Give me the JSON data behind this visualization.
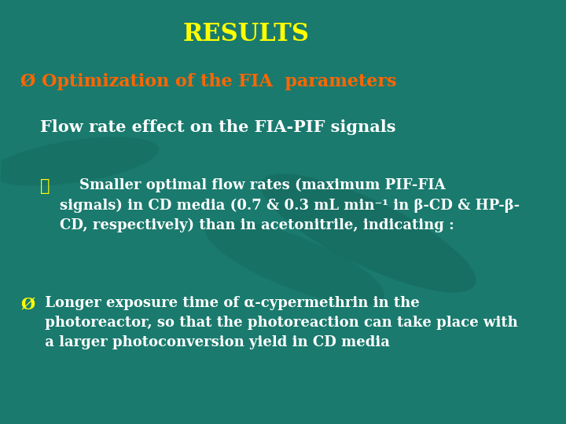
{
  "background_color": "#1a7a6e",
  "title": "RESULTS",
  "title_color": "#ffff00",
  "title_fontsize": 22,
  "subtitle": "Ø Optimization of the FIA  parameters",
  "subtitle_color": "#ff6600",
  "subtitle_fontsize": 16,
  "section_title": "Flow rate effect on the FIA-PIF signals",
  "section_title_color": "#ffffff",
  "section_title_fontsize": 15,
  "bullet1_marker": "✔",
  "bullet1_marker_color": "#ffff00",
  "bullet1_text": "    Smaller optimal flow rates (maximum PIF-FIA\nsignals) in CD media (0.7 & 0.3 mL min⁻¹ in β-CD & HP-β-\nCD, respectively) than in acetonitrile, indicating :",
  "bullet1_color": "#ffffff",
  "bullet1_fontsize": 13,
  "bullet2_marker": "Ø",
  "bullet2_marker_color": "#ffff00",
  "bullet2_text": " Longer exposure time of α-cypermethrin in the\n photoreactor, so that the photoreaction can take place with\n a larger photoconversion yield in CD media",
  "bullet2_color": "#ffffff",
  "bullet2_fontsize": 13
}
